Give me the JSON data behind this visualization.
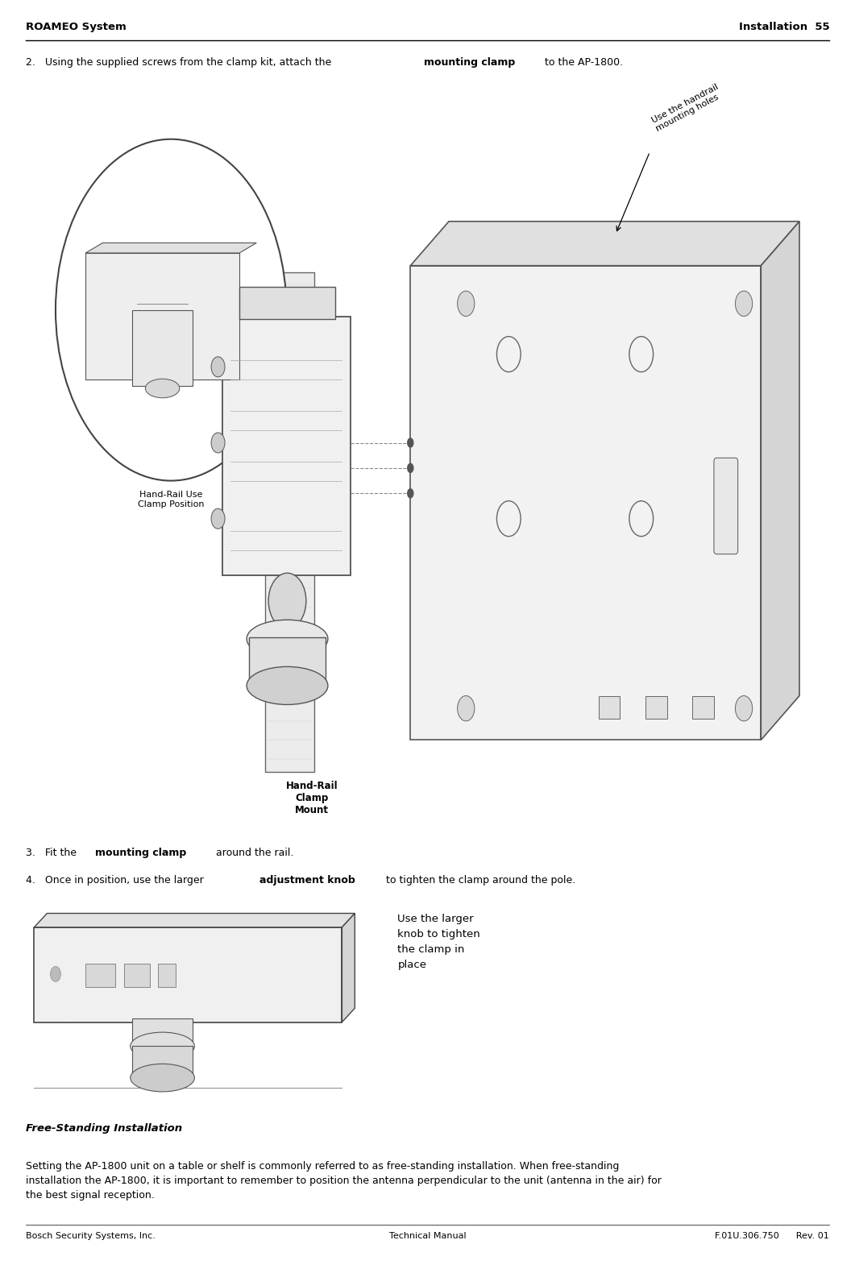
{
  "bg_color": "#ffffff",
  "header_left": "ROAMEO System",
  "header_right": "Installation  55",
  "footer_left": "Bosch Security Systems, Inc.",
  "footer_center": "Technical Manual",
  "footer_right": "F.01U.306.750      Rev. 01",
  "step2_prefix": "2.   Using the supplied screws from the clamp kit, attach the ",
  "step2_bold": "mounting clamp",
  "step2_suffix": " to the AP-1800.",
  "step3_prefix": "3.   Fit the ",
  "step3_bold": "mounting clamp",
  "step3_suffix": " around the rail.",
  "step4_prefix": "4.   Once in position, use the larger ",
  "step4_bold": "adjustment knob",
  "step4_suffix": " to tighten the clamp around the pole.",
  "handrail_label": "Use the handrail\nmounting holes",
  "handrail_clamp_label": "Hand-Rail\nClamp\nMount",
  "handrail_use_label": "Hand-Rail Use\nClamp Position",
  "knob_label": "Use the larger\nknob to tighten\nthe clamp in\nplace",
  "free_standing_title": "Free-Standing Installation",
  "free_standing_text": "Setting the AP-1800 unit on a table or shelf is commonly referred to as free-standing installation. When free-standing\ninstallation the AP-1800, it is important to remember to position the antenna perpendicular to the unit (antenna in the air) for\nthe best signal reception.",
  "text_color": "#000000",
  "fs_body": 9,
  "fs_header": 9.5,
  "fs_footer": 8,
  "fs_label": 8,
  "fs_label_large": 8.5
}
